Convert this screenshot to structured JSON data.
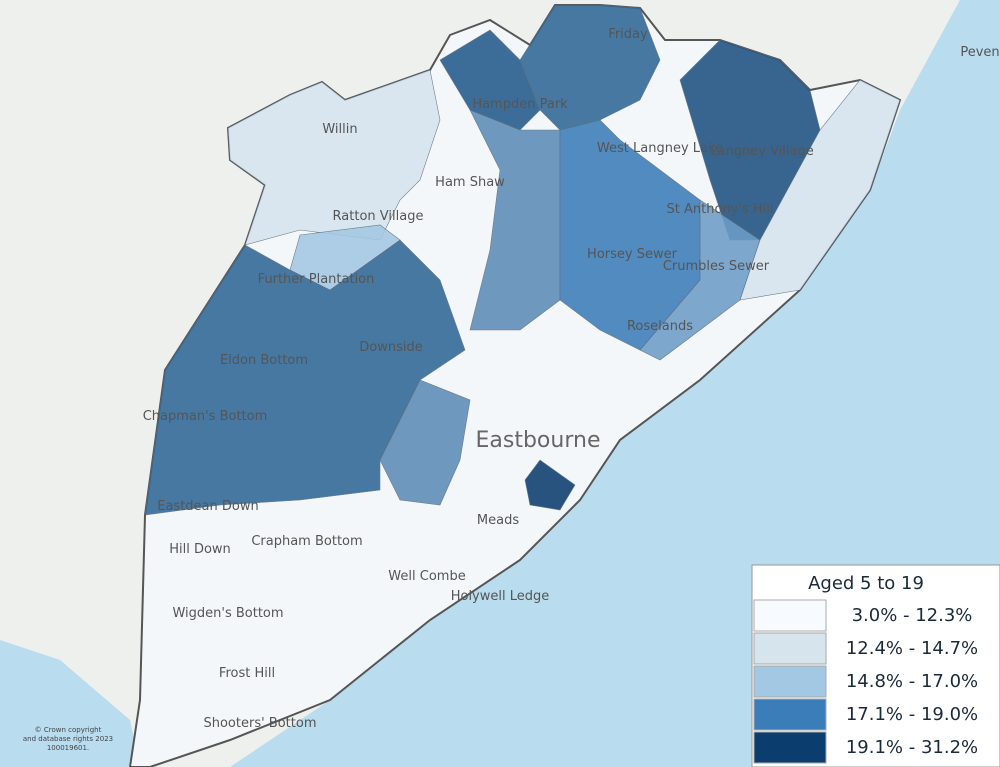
{
  "legend": {
    "title": "Aged 5 to 19",
    "items": [
      {
        "label": "3.0% - 12.3%",
        "color": "#f7fbff"
      },
      {
        "label": "12.4% - 14.7%",
        "color": "#d6e4ee"
      },
      {
        "label": "14.8% - 17.0%",
        "color": "#a3c8e3"
      },
      {
        "label": "17.1% - 19.0%",
        "color": "#3b7db9"
      },
      {
        "label": "19.1% - 31.2%",
        "color": "#0b3d6e"
      }
    ]
  },
  "places": [
    "Friday",
    "Hampden Park",
    "Willin",
    "Ratton Village",
    "Ham Shaw",
    "West Langney Lake",
    "Langney Village",
    "St Anthony's Hill",
    "Horsey Sewer",
    "Crumbles Sewer",
    "Roselands",
    "Further Plantation",
    "Eldon Bottom",
    "Downside",
    "Chapman's Bottom",
    "Eastbourne",
    "Eastdean Down",
    "Meads",
    "Crapham Bottom",
    "Hill Down",
    "Well Combe",
    "Holywell Ledge",
    "Wigden's Bottom",
    "Frost Hill",
    "Shooters' Bottom",
    "Peven"
  ],
  "copyright": [
    "© Crown copyright",
    "and database rights 2023",
    "100019601."
  ]
}
